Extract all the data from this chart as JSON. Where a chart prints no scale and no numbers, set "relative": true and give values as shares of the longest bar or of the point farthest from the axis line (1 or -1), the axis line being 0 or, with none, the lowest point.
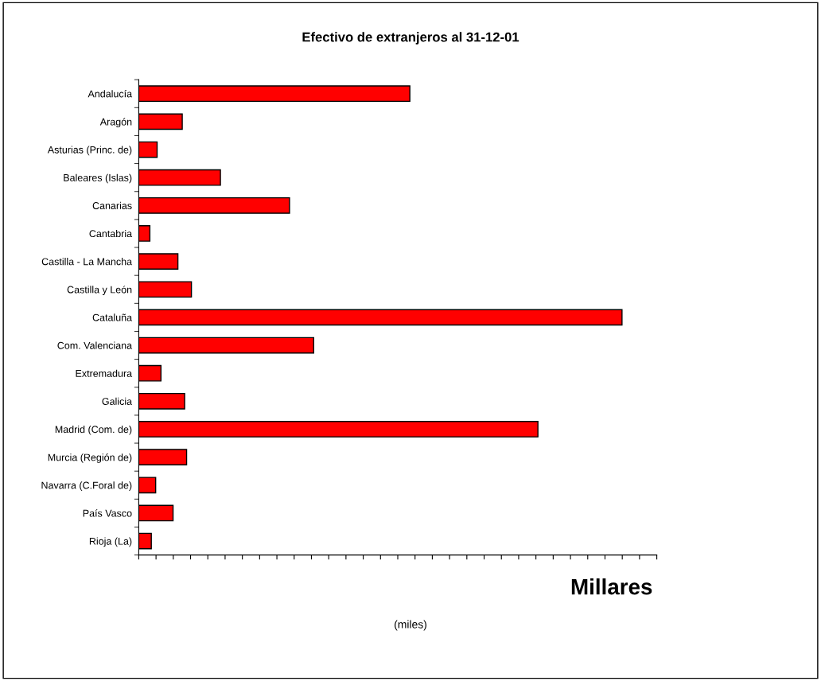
{
  "chart_data": {
    "type": "bar",
    "orientation": "horizontal",
    "relative": true,
    "title": "Efectivo de extranjeros al 31-12-01",
    "categories": [
      "Andalucía",
      "Aragón",
      "Asturias (Princ. de)",
      "Baleares (Islas)",
      "Canarias",
      "Cantabria",
      "Castilla - La Mancha",
      "Castilla y León",
      "Cataluña",
      "Com. Valenciana",
      "Extremadura",
      "Galicia",
      "Madrid (Com. de)",
      "Murcia (Región de)",
      "Navarra (C.Foral de)",
      "País Vasco",
      "Rioja (La)"
    ],
    "values": [
      0.561,
      0.09,
      0.038,
      0.169,
      0.312,
      0.023,
      0.081,
      0.109,
      1,
      0.362,
      0.046,
      0.095,
      0.826,
      0.099,
      0.035,
      0.071,
      0.026
    ],
    "color": "#ff0000",
    "annotations": [
      "Millares",
      "(miles)"
    ],
    "grid": false,
    "legend": false
  }
}
